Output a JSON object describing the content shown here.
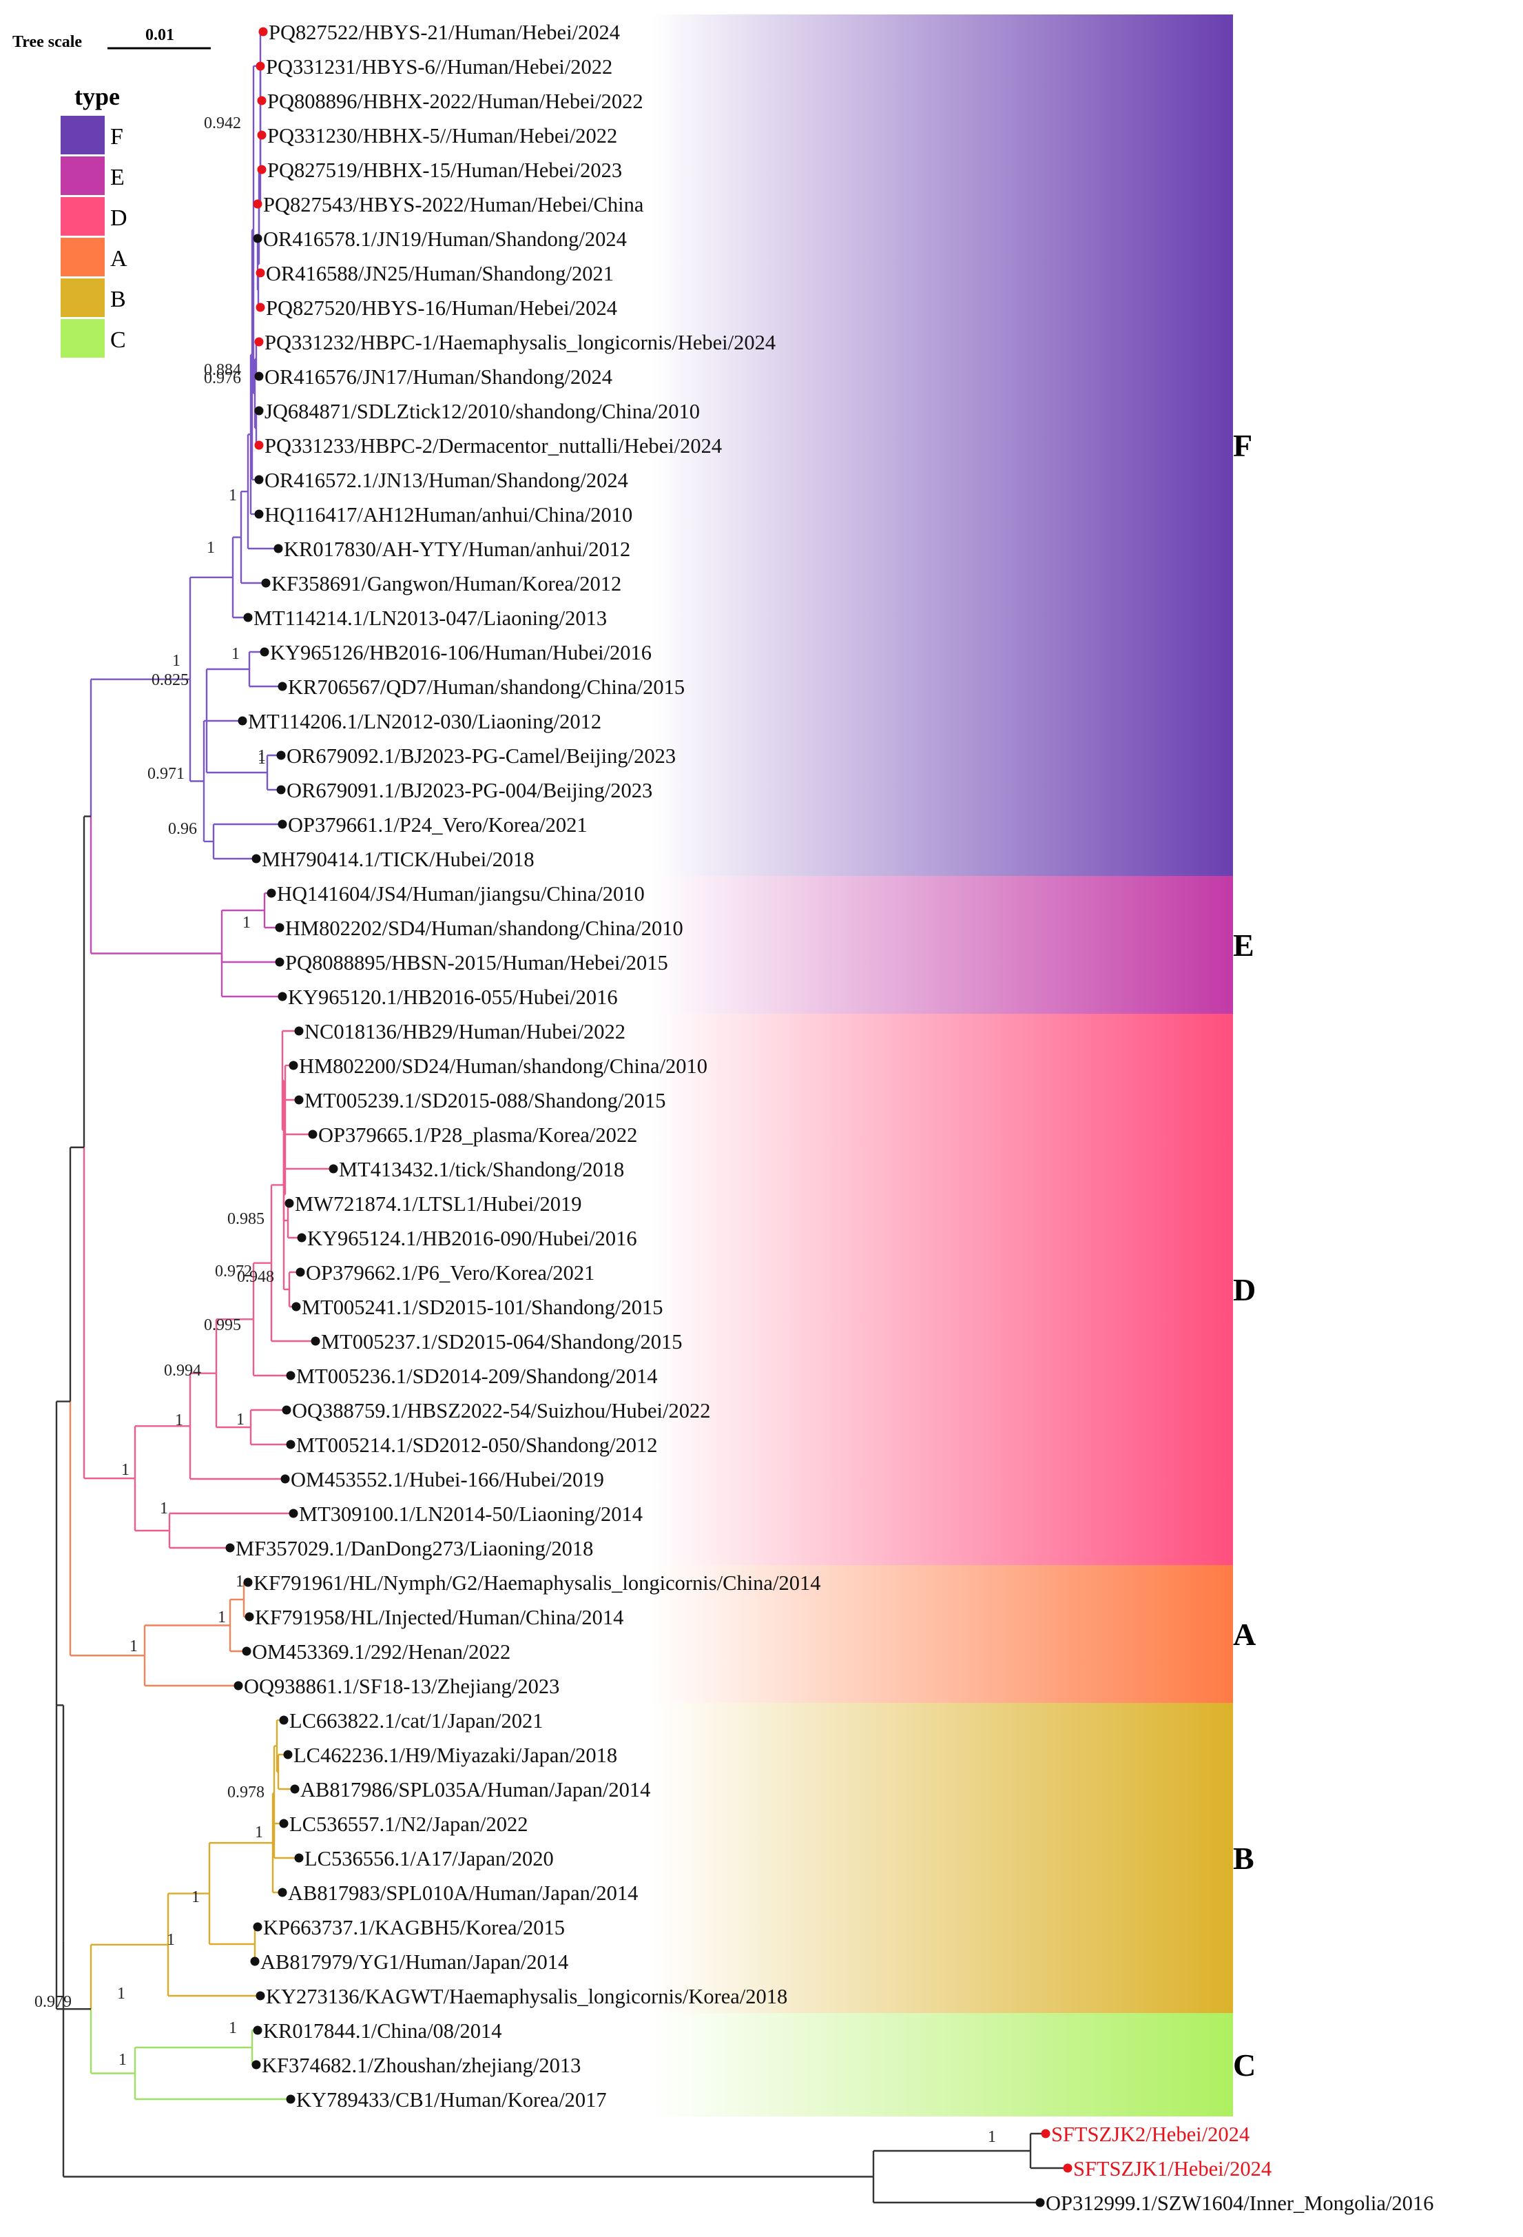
{
  "scale": {
    "label": "Tree scale",
    "value": "0.01"
  },
  "legend": {
    "title": "type",
    "items": [
      {
        "label": "F",
        "color": "#6a3fb0"
      },
      {
        "label": "E",
        "color": "#c23aa6"
      },
      {
        "label": "D",
        "color": "#ff4f7e"
      },
      {
        "label": "A",
        "color": "#ff7b45"
      },
      {
        "label": "B",
        "color": "#dcb22b"
      },
      {
        "label": "C",
        "color": "#aef060"
      }
    ]
  },
  "clades": [
    {
      "label": "F",
      "color": "#6a3fb0",
      "branch_color": "#7b56c8"
    },
    {
      "label": "E",
      "color": "#c23aa6",
      "branch_color": "#c44bb4"
    },
    {
      "label": "D",
      "color": "#ff4f7e",
      "branch_color": "#ee5c8f"
    },
    {
      "label": "A",
      "color": "#ff7b45",
      "branch_color": "#f0845a"
    },
    {
      "label": "B",
      "color": "#dcb22b",
      "branch_color": "#dcaa2a"
    },
    {
      "label": "C",
      "color": "#aef060",
      "branch_color": "#9ee064"
    }
  ],
  "tips": [
    {
      "label": "PQ827522/HBYS-21/Human/Hebei/2024",
      "highlight": true
    },
    {
      "label": "PQ331231/HBYS-6//Human/Hebei/2022",
      "highlight": true
    },
    {
      "label": "PQ808896/HBHX-2022/Human/Hebei/2022",
      "highlight": true
    },
    {
      "label": "PQ331230/HBHX-5//Human/Hebei/2022",
      "highlight": true
    },
    {
      "label": "PQ827519/HBHX-15/Human/Hebei/2023",
      "highlight": true
    },
    {
      "label": "PQ827543/HBYS-2022/Human/Hebei/China",
      "highlight": true
    },
    {
      "label": "OR416578.1/JN19/Human/Shandong/2024",
      "highlight": false
    },
    {
      "label": "OR416588/JN25/Human/Shandong/2021",
      "highlight": true
    },
    {
      "label": "PQ827520/HBYS-16/Human/Hebei/2024",
      "highlight": true
    },
    {
      "label": "PQ331232/HBPC-1/Haemaphysalis_longicornis/Hebei/2024",
      "highlight": true
    },
    {
      "label": "OR416576/JN17/Human/Shandong/2024",
      "highlight": false
    },
    {
      "label": "JQ684871/SDLZtick12/2010/shandong/China/2010",
      "highlight": false
    },
    {
      "label": "PQ331233/HBPC-2/Dermacentor_nuttalli/Hebei/2024",
      "highlight": true
    },
    {
      "label": "OR416572.1/JN13/Human/Shandong/2024",
      "highlight": false
    },
    {
      "label": "HQ116417/AH12Human/anhui/China/2010",
      "highlight": false
    },
    {
      "label": "KR017830/AH-YTY/Human/anhui/2012",
      "highlight": false
    },
    {
      "label": "KF358691/Gangwon/Human/Korea/2012",
      "highlight": false
    },
    {
      "label": "MT114214.1/LN2013-047/Liaoning/2013",
      "highlight": false
    },
    {
      "label": "KY965126/HB2016-106/Human/Hubei/2016",
      "highlight": false
    },
    {
      "label": "KR706567/QD7/Human/shandong/China/2015",
      "highlight": false
    },
    {
      "label": "MT114206.1/LN2012-030/Liaoning/2012",
      "highlight": false
    },
    {
      "label": "OR679092.1/BJ2023-PG-Camel/Beijing/2023",
      "highlight": false
    },
    {
      "label": "OR679091.1/BJ2023-PG-004/Beijing/2023",
      "highlight": false
    },
    {
      "label": "OP379661.1/P24_Vero/Korea/2021",
      "highlight": false
    },
    {
      "label": "MH790414.1/TICK/Hubei/2018",
      "highlight": false
    },
    {
      "label": "HQ141604/JS4/Human/jiangsu/China/2010",
      "highlight": false
    },
    {
      "label": "HM802202/SD4/Human/shandong/China/2010",
      "highlight": false
    },
    {
      "label": "PQ8088895/HBSN-2015/Human/Hebei/2015",
      "highlight": false
    },
    {
      "label": "KY965120.1/HB2016-055/Hubei/2016",
      "highlight": false
    },
    {
      "label": "NC018136/HB29/Human/Hubei/2022",
      "highlight": false
    },
    {
      "label": "HM802200/SD24/Human/shandong/China/2010",
      "highlight": false
    },
    {
      "label": "MT005239.1/SD2015-088/Shandong/2015",
      "highlight": false
    },
    {
      "label": "OP379665.1/P28_plasma/Korea/2022",
      "highlight": false
    },
    {
      "label": "MT413432.1/tick/Shandong/2018",
      "highlight": false
    },
    {
      "label": "MW721874.1/LTSL1/Hubei/2019",
      "highlight": false
    },
    {
      "label": "KY965124.1/HB2016-090/Hubei/2016",
      "highlight": false
    },
    {
      "label": "OP379662.1/P6_Vero/Korea/2021",
      "highlight": false
    },
    {
      "label": "MT005241.1/SD2015-101/Shandong/2015",
      "highlight": false
    },
    {
      "label": "MT005237.1/SD2015-064/Shandong/2015",
      "highlight": false
    },
    {
      "label": "MT005236.1/SD2014-209/Shandong/2014",
      "highlight": false
    },
    {
      "label": "OQ388759.1/HBSZ2022-54/Suizhou/Hubei/2022",
      "highlight": false
    },
    {
      "label": "MT005214.1/SD2012-050/Shandong/2012",
      "highlight": false
    },
    {
      "label": "OM453552.1/Hubei-166/Hubei/2019",
      "highlight": false
    },
    {
      "label": "MT309100.1/LN2014-50/Liaoning/2014",
      "highlight": false
    },
    {
      "label": "MF357029.1/DanDong273/Liaoning/2018",
      "highlight": false
    },
    {
      "label": "KF791961/HL/Nymph/G2/Haemaphysalis_longicornis/China/2014",
      "highlight": false
    },
    {
      "label": "KF791958/HL/Injected/Human/China/2014",
      "highlight": false
    },
    {
      "label": "OM453369.1/292/Henan/2022",
      "highlight": false
    },
    {
      "label": "OQ938861.1/SF18-13/Zhejiang/2023",
      "highlight": false
    },
    {
      "label": "LC663822.1/cat/1/Japan/2021",
      "highlight": false
    },
    {
      "label": "LC462236.1/H9/Miyazaki/Japan/2018",
      "highlight": false
    },
    {
      "label": "AB817986/SPL035A/Human/Japan/2014",
      "highlight": false
    },
    {
      "label": "LC536557.1/N2/Japan/2022",
      "highlight": false
    },
    {
      "label": "LC536556.1/A17/Japan/2020",
      "highlight": false
    },
    {
      "label": "AB817983/SPL010A/Human/Japan/2014",
      "highlight": false
    },
    {
      "label": "KP663737.1/KAGBH5/Korea/2015",
      "highlight": false
    },
    {
      "label": "AB817979/YG1/Human/Japan/2014",
      "highlight": false
    },
    {
      "label": "KY273136/KAGWT/Haemaphysalis_longicornis/Korea/2018",
      "highlight": false
    },
    {
      "label": "KR017844.1/China/08/2014",
      "highlight": false
    },
    {
      "label": "KF374682.1/Zhoushan/zhejiang/2013",
      "highlight": false
    },
    {
      "label": "KY789433/CB1/Human/Korea/2017",
      "highlight": false
    },
    {
      "label": "SFTSZJK2/Hebei/2024",
      "highlight": true
    },
    {
      "label": "SFTSZJK1/Hebei/2024",
      "highlight": true
    },
    {
      "label": "OP312999.1/SZW1604/Inner_Mongolia/2016",
      "highlight": false
    }
  ],
  "supports": [
    "0.942",
    "0.884",
    "0.976",
    "1",
    "1",
    "1",
    "0.825",
    "1",
    "1",
    "0.971",
    "0.96",
    "1",
    "1",
    "0.985",
    "0.972",
    "0.948",
    "0.995",
    "0.994",
    "1",
    "1",
    "1",
    "1",
    "1",
    "1",
    "1",
    "0.978",
    "1",
    "1",
    "1",
    "1",
    "1",
    "0.979",
    "1",
    "1"
  ]
}
